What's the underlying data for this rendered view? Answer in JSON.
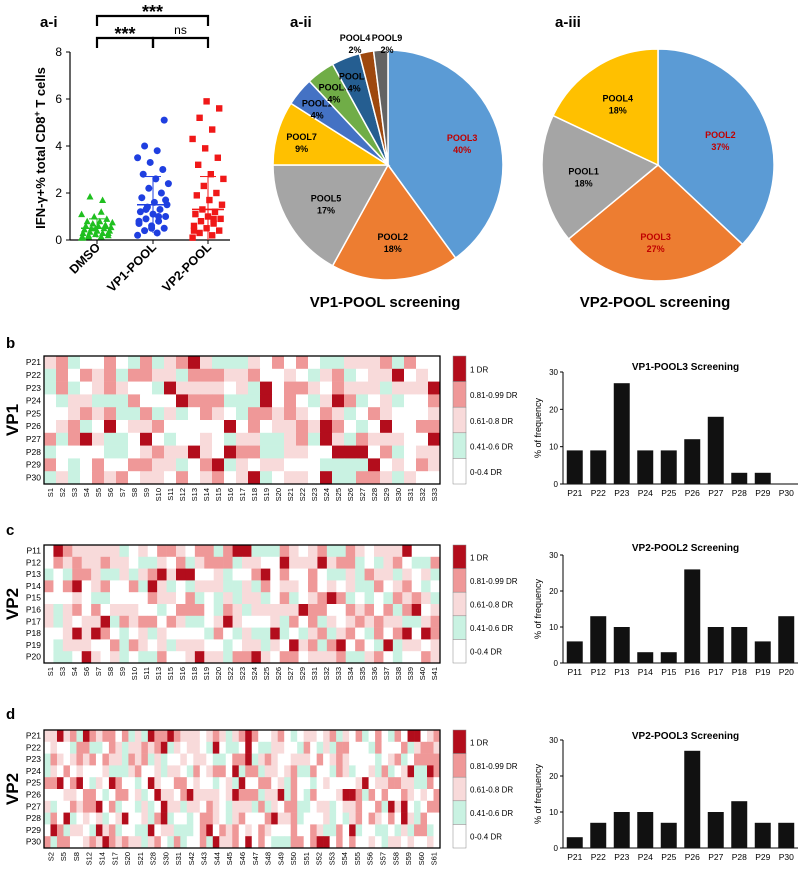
{
  "labels": {
    "a_i": "a-i",
    "a_ii": "a-ii",
    "a_iii": "a-iii",
    "b": "b",
    "c": "c",
    "d": "d"
  },
  "colors": {
    "green": "#1fbf1f",
    "blue": "#1f3fe0",
    "red": "#f01818",
    "dark": "#111111",
    "heat_scale": [
      "#ffffff",
      "#c9f2e2",
      "#f8dada",
      "#ef9898",
      "#b30d1c"
    ]
  },
  "chart_data": [
    {
      "id": "a-i",
      "type": "scatter",
      "title": "",
      "ylabel": "IFN-γ+% total CD8+ T cells",
      "ylabel_parts": [
        "IFN-γ+% total CD8",
        "+",
        " T cells"
      ],
      "ylim": [
        0,
        8
      ],
      "yticks": [
        0,
        2,
        4,
        6,
        8
      ],
      "categories": [
        "DMSO",
        "VP1-POOL",
        "VP2-POOL"
      ],
      "means": [
        0.5,
        1.5,
        1.3
      ],
      "sd": [
        0.4,
        1.2,
        1.4
      ],
      "points": [
        [
          0.1,
          0.15,
          0.2,
          0.2,
          0.25,
          0.3,
          0.3,
          0.35,
          0.4,
          0.4,
          0.45,
          0.5,
          0.5,
          0.55,
          0.6,
          0.6,
          0.65,
          0.7,
          0.75,
          0.8,
          0.8,
          0.9,
          1.0,
          1.1,
          1.2,
          0.15,
          0.3,
          0.5,
          0.1,
          1.7,
          1.85
        ],
        [
          0.2,
          0.3,
          0.4,
          0.5,
          0.6,
          0.7,
          0.8,
          0.9,
          1.0,
          1.1,
          1.2,
          1.3,
          1.4,
          1.5,
          1.6,
          1.8,
          2.0,
          2.2,
          2.4,
          2.6,
          2.8,
          3.0,
          3.3,
          3.5,
          3.8,
          4.0,
          5.1,
          0.5,
          0.8,
          1.0,
          1.3,
          1.7
        ],
        [
          0.1,
          0.2,
          0.3,
          0.4,
          0.5,
          0.6,
          0.7,
          0.8,
          0.9,
          1.0,
          1.1,
          1.2,
          1.3,
          1.5,
          1.7,
          1.9,
          2.0,
          2.3,
          2.6,
          2.8,
          3.2,
          3.5,
          3.9,
          4.3,
          4.7,
          5.2,
          5.6,
          5.9,
          0.4,
          0.9
        ]
      ],
      "significance": [
        {
          "pair": [
            "DMSO",
            "VP1-POOL"
          ],
          "text": "***"
        },
        {
          "pair": [
            "VP1-POOL",
            "VP2-POOL"
          ],
          "text": "ns"
        },
        {
          "pair": [
            "DMSO",
            "VP2-POOL"
          ],
          "text": "***"
        }
      ]
    },
    {
      "id": "a-ii",
      "type": "pie",
      "title": "VP1-POOL screening",
      "slices": [
        {
          "name": "POOL3",
          "value": 40,
          "label": "40%",
          "color": "#5b9bd5",
          "text_color": "#c00000"
        },
        {
          "name": "POOL2",
          "value": 18,
          "label": "18%",
          "color": "#ed7d31",
          "text_color": "#000000"
        },
        {
          "name": "POOL5",
          "value": 17,
          "label": "17%",
          "color": "#a5a5a5",
          "text_color": "#000000"
        },
        {
          "name": "POOL7",
          "value": 9,
          "label": "9%",
          "color": "#ffc000",
          "text_color": "#000000"
        },
        {
          "name": "POOL1",
          "value": 4,
          "label": "4%",
          "color": "#4472c4",
          "text_color": "#000000"
        },
        {
          "name": "POOL6",
          "value": 4,
          "label": "4%",
          "color": "#70ad47",
          "text_color": "#000000"
        },
        {
          "name": "POOL8",
          "value": 4,
          "label": "4%",
          "color": "#255e91",
          "text_color": "#000000"
        },
        {
          "name": "POOL4",
          "value": 2,
          "label": "2%",
          "color": "#9e480e",
          "text_color": "#000000"
        },
        {
          "name": "POOL9",
          "value": 2,
          "label": "2%",
          "color": "#636363",
          "text_color": "#000000"
        }
      ]
    },
    {
      "id": "a-iii",
      "type": "pie",
      "title": "VP2-POOL screening",
      "slices": [
        {
          "name": "POOL2",
          "value": 37,
          "label": "37%",
          "color": "#5b9bd5",
          "text_color": "#c00000"
        },
        {
          "name": "POOL3",
          "value": 27,
          "label": "27%",
          "color": "#ed7d31",
          "text_color": "#c00000"
        },
        {
          "name": "POOL1",
          "value": 18,
          "label": "18%",
          "color": "#a5a5a5",
          "text_color": "#000000"
        },
        {
          "name": "POOL4",
          "value": 18,
          "label": "18%",
          "color": "#ffc000",
          "text_color": "#000000"
        }
      ]
    },
    {
      "id": "b-heatmap",
      "type": "heatmap",
      "row_title": "VP1",
      "rows": [
        "P21",
        "P22",
        "P23",
        "P24",
        "P25",
        "P26",
        "P27",
        "P28",
        "P29",
        "P30"
      ],
      "cols": [
        "S1",
        "S2",
        "S3",
        "S4",
        "S5",
        "S6",
        "S7",
        "S8",
        "S9",
        "S10",
        "S11",
        "S12",
        "S13",
        "S14",
        "S15",
        "S16",
        "S17",
        "S18",
        "S19",
        "S20",
        "S21",
        "S22",
        "S23",
        "S24",
        "S25",
        "S26",
        "S27",
        "S28",
        "S29",
        "S30",
        "S31",
        "S32",
        "S33"
      ],
      "col_label_step": 1,
      "scale": [
        "1 DR",
        "0.81-0.99 DR",
        "0.61-0.8 DR",
        "0.41-0.6 DR",
        "0-0.4 DR"
      ],
      "seed": 11
    },
    {
      "id": "b-bar",
      "type": "bar",
      "title": "VP1-POOL3 Screening",
      "ylabel": "% of frequency",
      "ylim": [
        0,
        30
      ],
      "yticks": [
        0,
        10,
        20,
        30
      ],
      "categories": [
        "P21",
        "P22",
        "P23",
        "P24",
        "P25",
        "P26",
        "P27",
        "P28",
        "P29",
        "P30"
      ],
      "values": [
        9,
        9,
        27,
        9,
        9,
        12,
        18,
        3,
        3,
        0
      ]
    },
    {
      "id": "c-heatmap",
      "type": "heatmap",
      "row_title": "VP2",
      "rows": [
        "P11",
        "P12",
        "P13",
        "P14",
        "P15",
        "P16",
        "P17",
        "P18",
        "P19",
        "P20"
      ],
      "cols": [
        "S1",
        "S2",
        "S3",
        "S4",
        "S5",
        "S6",
        "S7",
        "S8",
        "S9",
        "S10",
        "S11",
        "S12",
        "S13",
        "S14",
        "S15",
        "S16",
        "S17",
        "S18",
        "S19",
        "S20",
        "S21",
        "S22",
        "S23",
        "S24",
        "S25",
        "S26",
        "S27",
        "S28",
        "S29",
        "S30",
        "S31",
        "S32",
        "S33",
        "S34",
        "S35",
        "S36",
        "S37",
        "S38",
        "S39",
        "S40",
        "S41",
        "S42"
      ],
      "col_labels": [
        "S1",
        "S3",
        "S4",
        "S6",
        "S7",
        "S8",
        "S9",
        "S10",
        "S11",
        "S13",
        "S15",
        "S16",
        "S18",
        "S19",
        "S20",
        "S22",
        "S23",
        "S24",
        "S25",
        "S26",
        "S27",
        "S29",
        "S31",
        "S32",
        "S33",
        "S34",
        "S35",
        "S36",
        "S37",
        "S38",
        "S39",
        "S40",
        "S41"
      ],
      "scale": [
        "1 DR",
        "0.81-0.99 DR",
        "0.61-0.8 DR",
        "0.41-0.6 DR",
        "0-0.4 DR"
      ],
      "seed": 23
    },
    {
      "id": "c-bar",
      "type": "bar",
      "title": "VP2-POOL2 Screening",
      "ylabel": "% of frequency",
      "ylim": [
        0,
        30
      ],
      "yticks": [
        0,
        10,
        20,
        30
      ],
      "categories": [
        "P11",
        "P12",
        "P13",
        "P14",
        "P15",
        "P16",
        "P17",
        "P18",
        "P19",
        "P20"
      ],
      "values": [
        6,
        13,
        10,
        3,
        3,
        26,
        10,
        10,
        6,
        13
      ]
    },
    {
      "id": "d-heatmap",
      "type": "heatmap",
      "row_title": "VP2",
      "rows": [
        "P21",
        "P22",
        "P23",
        "P24",
        "P25",
        "P26",
        "P27",
        "P28",
        "P29",
        "P30"
      ],
      "cols": [
        "S1",
        "S2",
        "S3",
        "S4",
        "S5",
        "S6",
        "S7",
        "S8",
        "S9",
        "S10",
        "S11",
        "S12",
        "S13",
        "S14",
        "S15",
        "S16",
        "S17",
        "S18",
        "S19",
        "S20",
        "S21",
        "S22",
        "S23",
        "S24",
        "S25",
        "S26",
        "S27",
        "S28",
        "S29",
        "S30",
        "S31",
        "S32",
        "S33",
        "S34",
        "S35",
        "S36",
        "S37",
        "S38",
        "S39",
        "S40",
        "S41",
        "S42",
        "S43",
        "S44",
        "S45",
        "S46",
        "S47",
        "S48",
        "S49",
        "S50",
        "S51",
        "S52",
        "S53",
        "S54",
        "S55",
        "S56",
        "S57",
        "S58",
        "S59",
        "S60",
        "S61"
      ],
      "col_labels": [
        "S2",
        "S5",
        "S8",
        "S12",
        "S14",
        "S17",
        "S20",
        "S21",
        "S28",
        "S30",
        "S31",
        "S42",
        "S43",
        "S44",
        "S45",
        "S46",
        "S47",
        "S48",
        "S49",
        "S50",
        "S51",
        "S52",
        "S53",
        "S54",
        "S55",
        "S56",
        "S57",
        "S58",
        "S59",
        "S60",
        "S61"
      ],
      "scale": [
        "1 DR",
        "0.81-0.99 DR",
        "0.61-0.8 DR",
        "0.41-0.6 DR",
        "0-0.4 DR"
      ],
      "seed": 37
    },
    {
      "id": "d-bar",
      "type": "bar",
      "title": "VP2-POOL3 Screening",
      "ylabel": "% of frequency",
      "ylim": [
        0,
        30
      ],
      "yticks": [
        0,
        10,
        20,
        30
      ],
      "categories": [
        "P21",
        "P22",
        "P23",
        "P24",
        "P25",
        "P26",
        "P27",
        "P28",
        "P29",
        "P30"
      ],
      "values": [
        3,
        7,
        10,
        10,
        7,
        27,
        10,
        13,
        7,
        7
      ]
    }
  ]
}
